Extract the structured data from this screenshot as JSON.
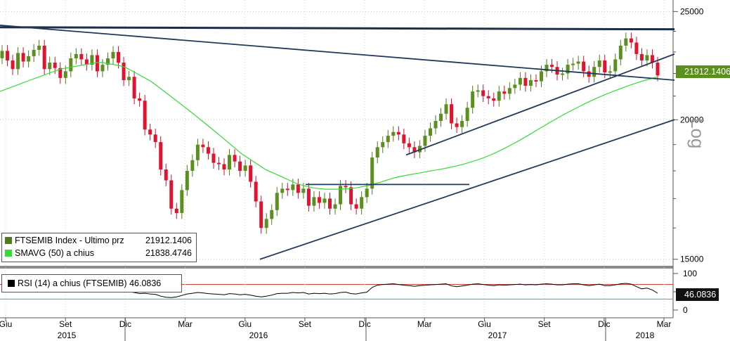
{
  "chart_data": {
    "type": "candlestick",
    "symbol": "FTSEMIB Index",
    "y_scale": "log",
    "y_scale_label": "Log",
    "ylim": [
      14800,
      25600
    ],
    "y_ticks": [
      15000,
      20000,
      25000
    ],
    "x_month_labels": [
      "Giu",
      "Set",
      "Dic",
      "Mar",
      "Giu",
      "Set",
      "Dic",
      "Mar",
      "Giu",
      "Set",
      "Dic",
      "Mar"
    ],
    "x_year_labels": [
      "2015",
      "2016",
      "2017",
      "2018"
    ],
    "legend": [
      {
        "swatch_color": "#4e7d1a",
        "label": "FTSEMIB Index - Ultimo prz",
        "value": "21912.1406"
      },
      {
        "swatch_color": "#33dd33",
        "label": "SMAVG (50) a chius",
        "value": "21838.4746"
      }
    ],
    "last_price_tag": "21912.1406",
    "rsi": {
      "label": "RSI (14) a chius (FTSEMIB)",
      "value": "46.0836",
      "tag": "46.0836",
      "y_ticks": [
        0,
        50,
        100
      ],
      "upper_band": 70,
      "lower_band": 30
    },
    "weekly_closes": [
      23050,
      22600,
      22200,
      22950,
      22550,
      22800,
      23100,
      23300,
      22200,
      22500,
      22250,
      21800,
      22100,
      22700,
      22900,
      22650,
      22400,
      22850,
      22100,
      22400,
      22700,
      23000,
      22500,
      21700,
      21850,
      20900,
      20800,
      19600,
      19400,
      19100,
      18050,
      17650,
      16650,
      16500,
      17300,
      18000,
      18400,
      19000,
      18900,
      18650,
      18300,
      18250,
      18050,
      18600,
      18350,
      18000,
      18200,
      17600,
      16900,
      16000,
      16300,
      16600,
      17200,
      17350,
      17300,
      17500,
      17200,
      17350,
      16750,
      17050,
      16850,
      17000,
      16650,
      16800,
      17450,
      17400,
      16800,
      16650,
      17050,
      17350,
      18500,
      18900,
      19100,
      19350,
      19500,
      19400,
      19050,
      18900,
      18700,
      18950,
      19350,
      19650,
      19950,
      20250,
      20650,
      19850,
      19700,
      19950,
      20500,
      21200,
      21250,
      21000,
      20900,
      20800,
      21200,
      21100,
      21350,
      21500,
      21800,
      21450,
      21700,
      21650,
      22100,
      22400,
      22300,
      21950,
      22000,
      22400,
      22450,
      22550,
      22100,
      21850,
      22300,
      22600,
      22050,
      22100,
      22650,
      23300,
      23650,
      23450,
      22900,
      22600,
      22850,
      22500,
      21912
    ],
    "sma50": [
      21200,
      21300,
      21400,
      21500,
      21600,
      21700,
      21800,
      21900,
      22000,
      22100,
      22200,
      22250,
      22300,
      22350,
      22400,
      22450,
      22500,
      22500,
      22450,
      22400,
      22350,
      22250,
      22100,
      21950,
      21800,
      21650,
      21450,
      21250,
      21050,
      20850,
      20650,
      20450,
      20250,
      20050,
      19850,
      19650,
      19450,
      19250,
      19050,
      18850,
      18650,
      18500,
      18350,
      18200,
      18050,
      17950,
      17850,
      17750,
      17650,
      17550,
      17480,
      17420,
      17380,
      17350,
      17330,
      17330,
      17330,
      17340,
      17350,
      17380,
      17420,
      17460,
      17520,
      17580,
      17650,
      17720,
      17780,
      17820,
      17860,
      17900,
      17940,
      17980,
      18020,
      18060,
      18100,
      18150,
      18200,
      18260,
      18330,
      18400,
      18480,
      18570,
      18670,
      18780,
      18900,
      19020,
      19150,
      19290,
      19430,
      19580,
      19720,
      19870,
      20010,
      20150,
      20290,
      20420,
      20550,
      20680,
      20800,
      20920,
      21030,
      21140,
      21240,
      21340,
      21440,
      21530,
      21620,
      21700,
      21780,
      21850
    ],
    "rsi_values": [
      65,
      63,
      60,
      58,
      56,
      57,
      61,
      66,
      64,
      58,
      60,
      62,
      61,
      59,
      57,
      58,
      60,
      61,
      59,
      56,
      54,
      55,
      56,
      52,
      50,
      48,
      45,
      46,
      44,
      43,
      38,
      35,
      34,
      36,
      40,
      44,
      46,
      48,
      47,
      45,
      44,
      43,
      42,
      45,
      44,
      42,
      43,
      41,
      38,
      36,
      38,
      41,
      45,
      46,
      46,
      48,
      47,
      48,
      44,
      46,
      45,
      46,
      44,
      45,
      48,
      49,
      45,
      44,
      47,
      49,
      62,
      68,
      70,
      71,
      72,
      70,
      68,
      67,
      65,
      67,
      68,
      69,
      70,
      71,
      72,
      66,
      64,
      66,
      68,
      71,
      72,
      70,
      68,
      67,
      69,
      68,
      69,
      70,
      71,
      69,
      70,
      69,
      71,
      72,
      71,
      69,
      69,
      71,
      72,
      72,
      69,
      67,
      69,
      71,
      67,
      67,
      69,
      72,
      73,
      71,
      64,
      58,
      60,
      55,
      46.08
    ],
    "trendlines": [
      {
        "from": [
          "2015-Giu",
          24200
        ],
        "to": [
          "2018-Mar",
          24100
        ]
      },
      {
        "from": [
          "2015-Giu",
          24300
        ],
        "to": [
          "2018-Mar",
          21700
        ]
      },
      {
        "from": [
          "2016-Giu",
          15000
        ],
        "to": [
          "2018-Mar",
          20000
        ]
      },
      {
        "from": [
          "2016-Set",
          17500
        ],
        "to": [
          "2017-Giu",
          17500
        ]
      },
      {
        "from": [
          "2016-Dic",
          18600
        ],
        "to": [
          "2018-Mar",
          22900
        ]
      }
    ]
  }
}
